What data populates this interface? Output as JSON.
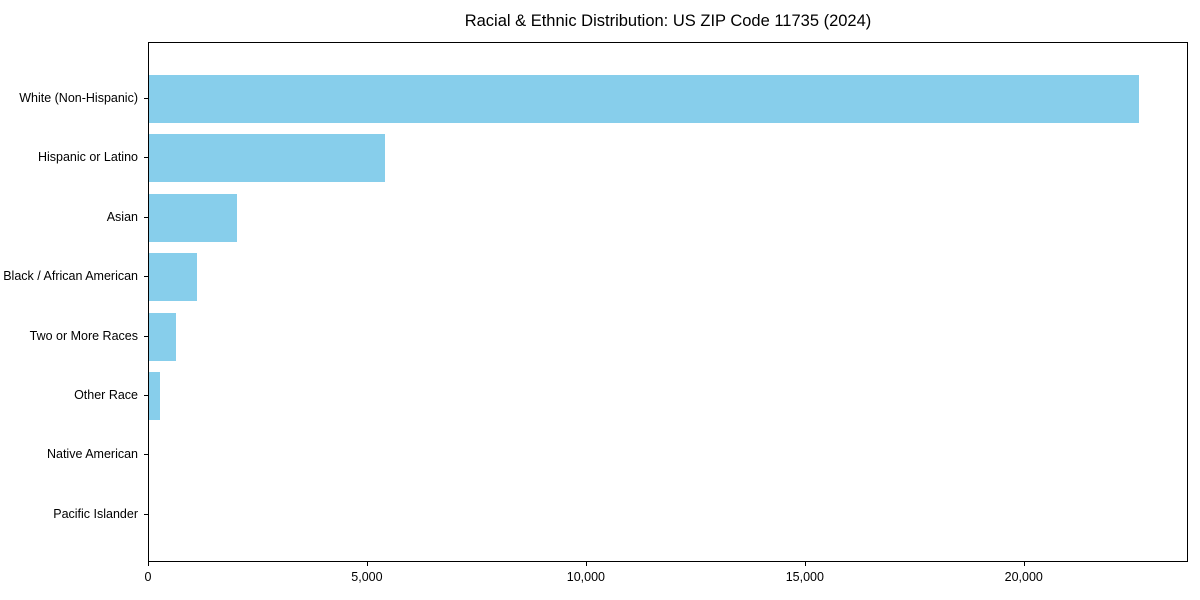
{
  "chart_data": {
    "type": "bar",
    "orientation": "horizontal",
    "title": "Racial & Ethnic Distribution: US ZIP Code 11735 (2024)",
    "xlabel": "",
    "ylabel": "",
    "categories": [
      "White (Non-Hispanic)",
      "Hispanic or Latino",
      "Asian",
      "Black / African American",
      "Two or More Races",
      "Other Race",
      "Native American",
      "Pacific Islander"
    ],
    "values": [
      22600,
      5400,
      2000,
      1100,
      620,
      260,
      0,
      0
    ],
    "xlim": [
      0,
      23750
    ],
    "x_ticks": [
      0,
      5000,
      10000,
      15000,
      20000
    ],
    "x_tick_labels": [
      "0",
      "5,000",
      "10,000",
      "15,000",
      "20,000"
    ],
    "bar_color": "#87CEEB",
    "axis_color": "#000000",
    "text_color": "#000000",
    "grid": false,
    "legend": null
  }
}
